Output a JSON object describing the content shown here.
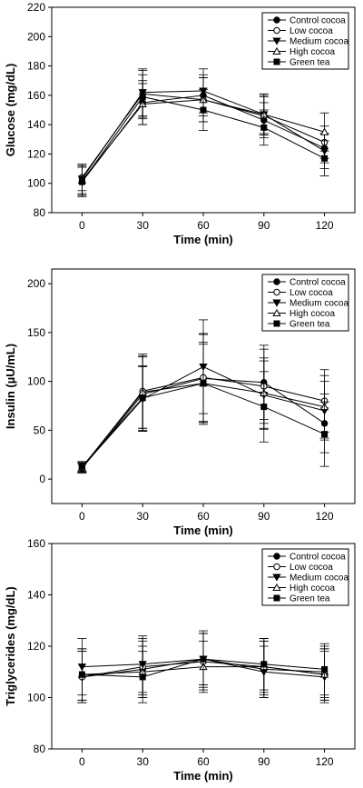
{
  "chart_data": [
    {
      "type": "line",
      "xlabel": "Time (min)",
      "ylabel": "Glucose (mg/dL)",
      "x": [
        0,
        30,
        60,
        90,
        120
      ],
      "xticks": [
        "0",
        "30",
        "60",
        "90",
        "120"
      ],
      "xlim": [
        -15,
        135
      ],
      "ylim": [
        80,
        220
      ],
      "yticks": [
        80,
        100,
        120,
        140,
        160,
        180,
        200,
        220
      ],
      "legend_position": "top-right",
      "series": [
        {
          "name": "Control cocoa",
          "marker": "filled-circle",
          "values": [
            101,
            155,
            160,
            143,
            124
          ],
          "errors": [
            10,
            15,
            14,
            12,
            10
          ]
        },
        {
          "name": "Low cocoa",
          "marker": "open-circle",
          "values": [
            104,
            161,
            157,
            146,
            128
          ],
          "errors": [
            9,
            16,
            15,
            13,
            11
          ]
        },
        {
          "name": "Medium cocoa",
          "marker": "filled-triangle-down",
          "values": [
            103,
            162,
            163,
            147,
            122
          ],
          "errors": [
            10,
            16,
            15,
            14,
            12
          ]
        },
        {
          "name": "High cocoa",
          "marker": "open-triangle-up",
          "values": [
            102,
            154,
            157,
            147,
            135
          ],
          "errors": [
            10,
            14,
            15,
            13,
            13
          ]
        },
        {
          "name": "Green tea",
          "marker": "filled-square",
          "values": [
            101,
            159,
            150,
            138,
            117
          ],
          "errors": [
            10,
            15,
            14,
            12,
            12
          ]
        }
      ]
    },
    {
      "type": "line",
      "xlabel": "Time (min)",
      "ylabel": "Insulin (µU/mL)",
      "x": [
        0,
        30,
        60,
        90,
        120
      ],
      "xticks": [
        "0",
        "30",
        "60",
        "90",
        "120"
      ],
      "xlim": [
        -15,
        135
      ],
      "ylim": [
        -25,
        215
      ],
      "yticks": [
        0,
        50,
        100,
        150,
        200
      ],
      "legend_position": "top-right",
      "series": [
        {
          "name": "Control cocoa",
          "marker": "filled-circle",
          "values": [
            11,
            87,
            103,
            99,
            57
          ],
          "errors": [
            5,
            38,
            45,
            38,
            30
          ]
        },
        {
          "name": "Low cocoa",
          "marker": "open-circle",
          "values": [
            12,
            90,
            104,
            95,
            80
          ],
          "errors": [
            5,
            38,
            45,
            38,
            32
          ]
        },
        {
          "name": "Medium cocoa",
          "marker": "filled-triangle-down",
          "values": [
            12,
            82,
            115,
            86,
            70
          ],
          "errors": [
            5,
            33,
            48,
            35,
            30
          ]
        },
        {
          "name": "High cocoa",
          "marker": "open-triangle-up",
          "values": [
            12,
            89,
            98,
            88,
            74
          ],
          "errors": [
            5,
            37,
            42,
            36,
            32
          ]
        },
        {
          "name": "Green tea",
          "marker": "filled-square",
          "values": [
            13,
            83,
            98,
            74,
            46
          ],
          "errors": [
            5,
            33,
            40,
            36,
            33
          ]
        }
      ]
    },
    {
      "type": "line",
      "xlabel": "Time (min)",
      "ylabel": "Triglycerides (mg/dL)",
      "x": [
        0,
        30,
        60,
        90,
        120
      ],
      "xticks": [
        "0",
        "30",
        "60",
        "90",
        "120"
      ],
      "xlim": [
        -15,
        135
      ],
      "ylim": [
        80,
        160
      ],
      "yticks": [
        80,
        100,
        120,
        140,
        160
      ],
      "legend_position": "top-right",
      "series": [
        {
          "name": "Control cocoa",
          "marker": "filled-circle",
          "values": [
            108,
            111,
            115,
            111,
            110
          ],
          "errors": [
            10,
            11,
            10,
            11,
            10
          ]
        },
        {
          "name": "Low cocoa",
          "marker": "open-circle",
          "values": [
            108,
            112,
            114,
            112,
            109
          ],
          "errors": [
            10,
            11,
            11,
            11,
            10
          ]
        },
        {
          "name": "Medium cocoa",
          "marker": "filled-triangle-down",
          "values": [
            112,
            113,
            115,
            110,
            108
          ],
          "errors": [
            11,
            11,
            11,
            10,
            10
          ]
        },
        {
          "name": "High cocoa",
          "marker": "open-triangle-up",
          "values": [
            109,
            110,
            112,
            112,
            109
          ],
          "errors": [
            10,
            10,
            10,
            10,
            10
          ]
        },
        {
          "name": "Green tea",
          "marker": "filled-square",
          "values": [
            109,
            108,
            115,
            113,
            111
          ],
          "errors": [
            10,
            10,
            10,
            10,
            10
          ]
        }
      ]
    }
  ]
}
